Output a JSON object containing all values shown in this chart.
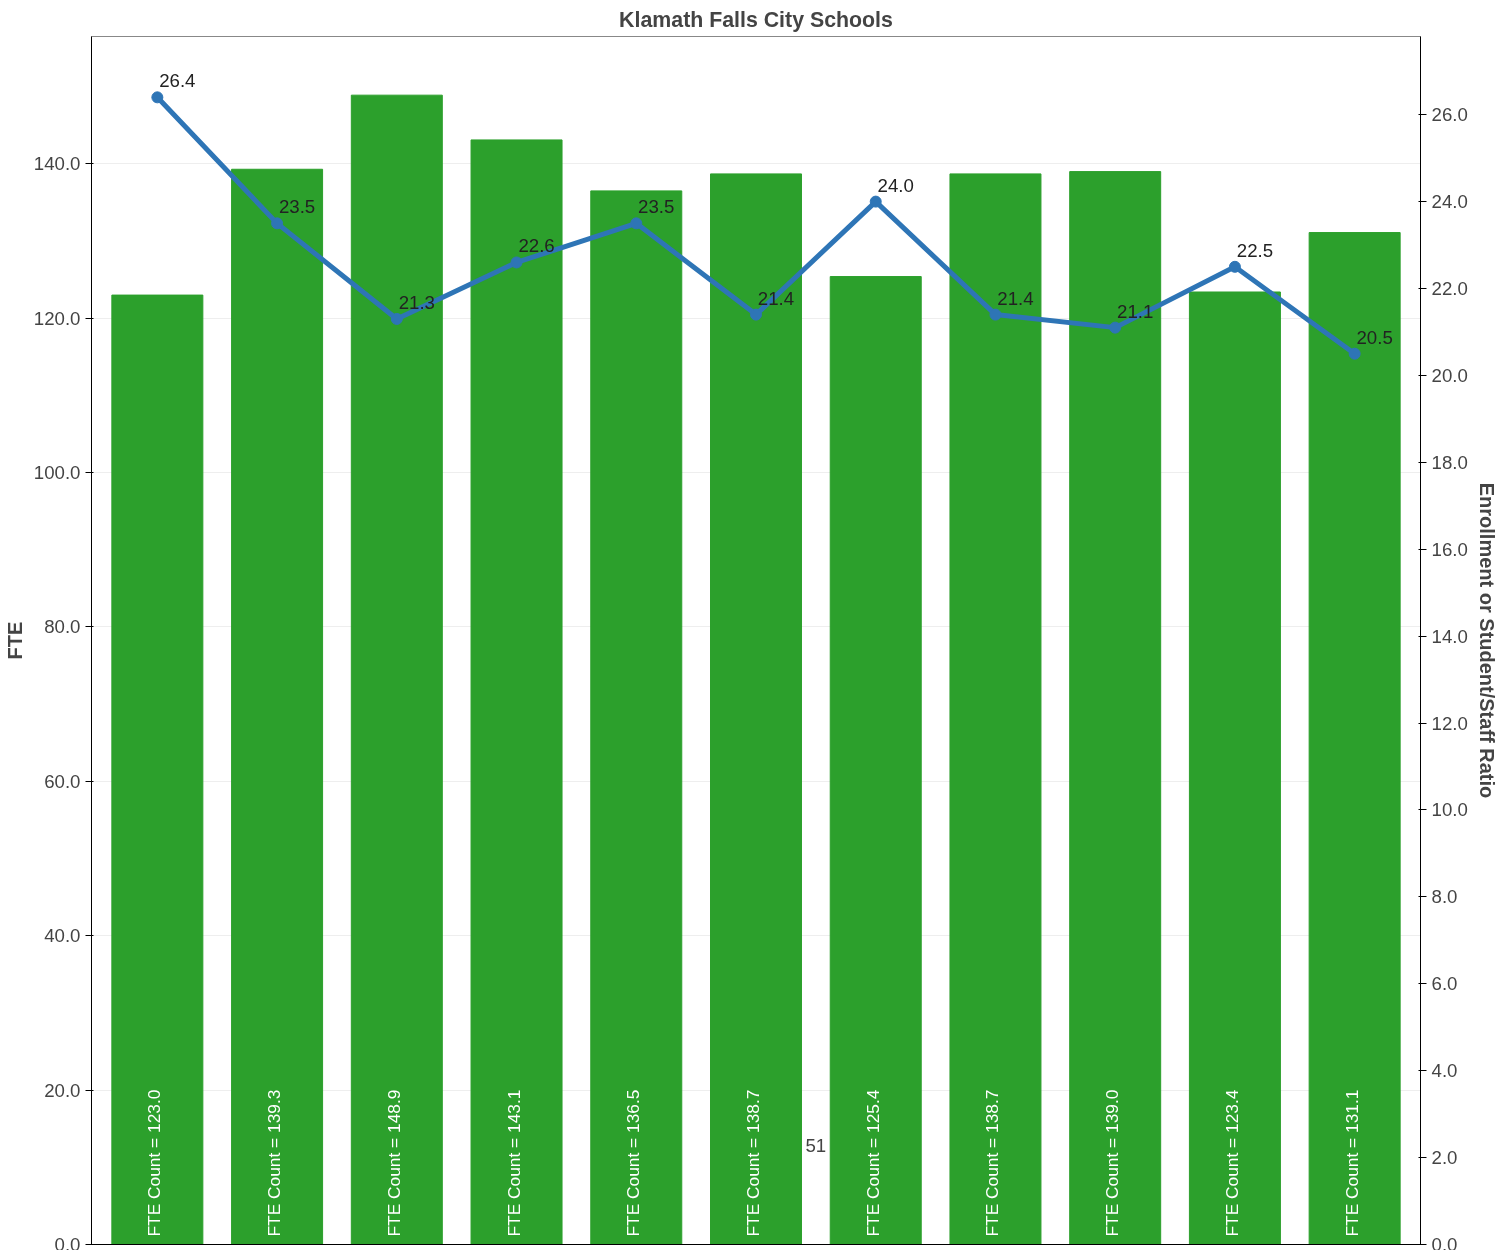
{
  "chart_data": {
    "type": "bar",
    "title": "Klamath Falls City Schools",
    "ylabel": "FTE",
    "y2label": "Enrollment or Student/Staff Ratio",
    "categories": [
      null,
      null,
      null,
      null,
      null,
      null,
      null,
      null,
      null,
      null,
      null
    ],
    "series": [
      {
        "color": "#2ca02c",
        "values": [
          123.0,
          139.3,
          148.9,
          143.1,
          136.5,
          138.7,
          125.4,
          138.7,
          139.0,
          123.4,
          131.1
        ],
        "value_labels": [
          "FTE Count = 123.0",
          "FTE Count = 139.3",
          "FTE Count = 148.9",
          "FTE Count = 143.1",
          "FTE Count = 136.5",
          "FTE Count = 138.7",
          "FTE Count = 125.4",
          "FTE Count = 138.7",
          "FTE Count = 139.0",
          "FTE Count = 123.4",
          "FTE Count = 131.1"
        ]
      },
      {
        "type": "line",
        "axis": "y2",
        "color": "#2e75b6",
        "marker": "circle",
        "values": [
          26.4,
          23.5,
          21.3,
          22.6,
          23.5,
          21.4,
          24.0,
          21.4,
          21.1,
          22.5,
          20.5
        ],
        "value_labels": [
          "26.4",
          "23.5",
          "21.3",
          "22.6",
          "23.5",
          "21.4",
          "24.0",
          "21.4",
          "21.1",
          "22.5",
          "20.5"
        ]
      }
    ],
    "ylim": [
      0,
      156.5
    ],
    "yticks": [
      {
        "value": 0,
        "label": "0.0"
      },
      {
        "value": 20,
        "label": "20.0"
      },
      {
        "value": 40,
        "label": "40.0"
      },
      {
        "value": 60,
        "label": "60.0"
      },
      {
        "value": 80,
        "label": "80.0"
      },
      {
        "value": 100,
        "label": "100.0"
      },
      {
        "value": 120,
        "label": "120.0"
      },
      {
        "value": 140,
        "label": "140.0"
      }
    ],
    "y2lim": [
      0,
      27.8
    ],
    "y2ticks": [
      {
        "value": 0,
        "label": "0.0"
      },
      {
        "value": 2,
        "label": "2.0"
      },
      {
        "value": 4,
        "label": "4.0"
      },
      {
        "value": 6,
        "label": "6.0"
      },
      {
        "value": 8,
        "label": "8.0"
      },
      {
        "value": 10,
        "label": "10.0"
      },
      {
        "value": 12,
        "label": "12.0"
      },
      {
        "value": 14,
        "label": "14.0"
      },
      {
        "value": 16,
        "label": "16.0"
      },
      {
        "value": 18,
        "label": "18.0"
      },
      {
        "value": 20,
        "label": "20.0"
      },
      {
        "value": 22,
        "label": "22.0"
      },
      {
        "value": 24,
        "label": "24.0"
      },
      {
        "value": 26,
        "label": "26.0"
      }
    ],
    "grid": "y",
    "annotations": [
      "51"
    ]
  }
}
